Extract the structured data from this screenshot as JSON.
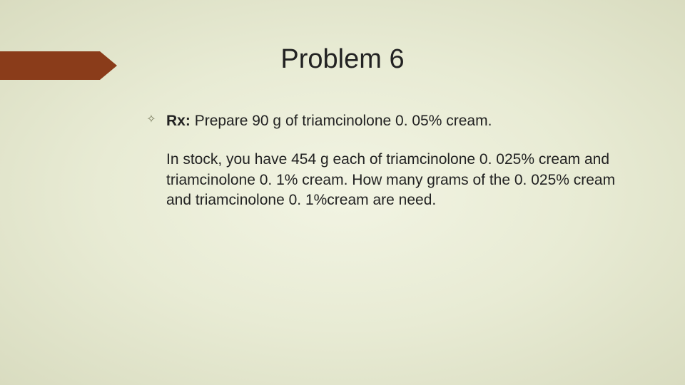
{
  "slide": {
    "title": "Problem 6",
    "accent_color": "#8a3c1a",
    "background_gradient": [
      "#f2f4e3",
      "#e8ebd4",
      "#d9dcc0"
    ],
    "title_fontsize": 38,
    "body_fontsize": 21,
    "bullet_glyph": "✧",
    "bullet_color": "#7a7d5f",
    "rx_label": "Rx:",
    "rx_text": "Prepare 90 g of triamcinolone 0. 05% cream.",
    "body_text": "In stock, you have 454 g each of triamcinolone 0. 025% cream and triamcinolone 0. 1% cream. How many grams of the 0. 025% cream and triamcinolone 0. 1%cream are need."
  }
}
